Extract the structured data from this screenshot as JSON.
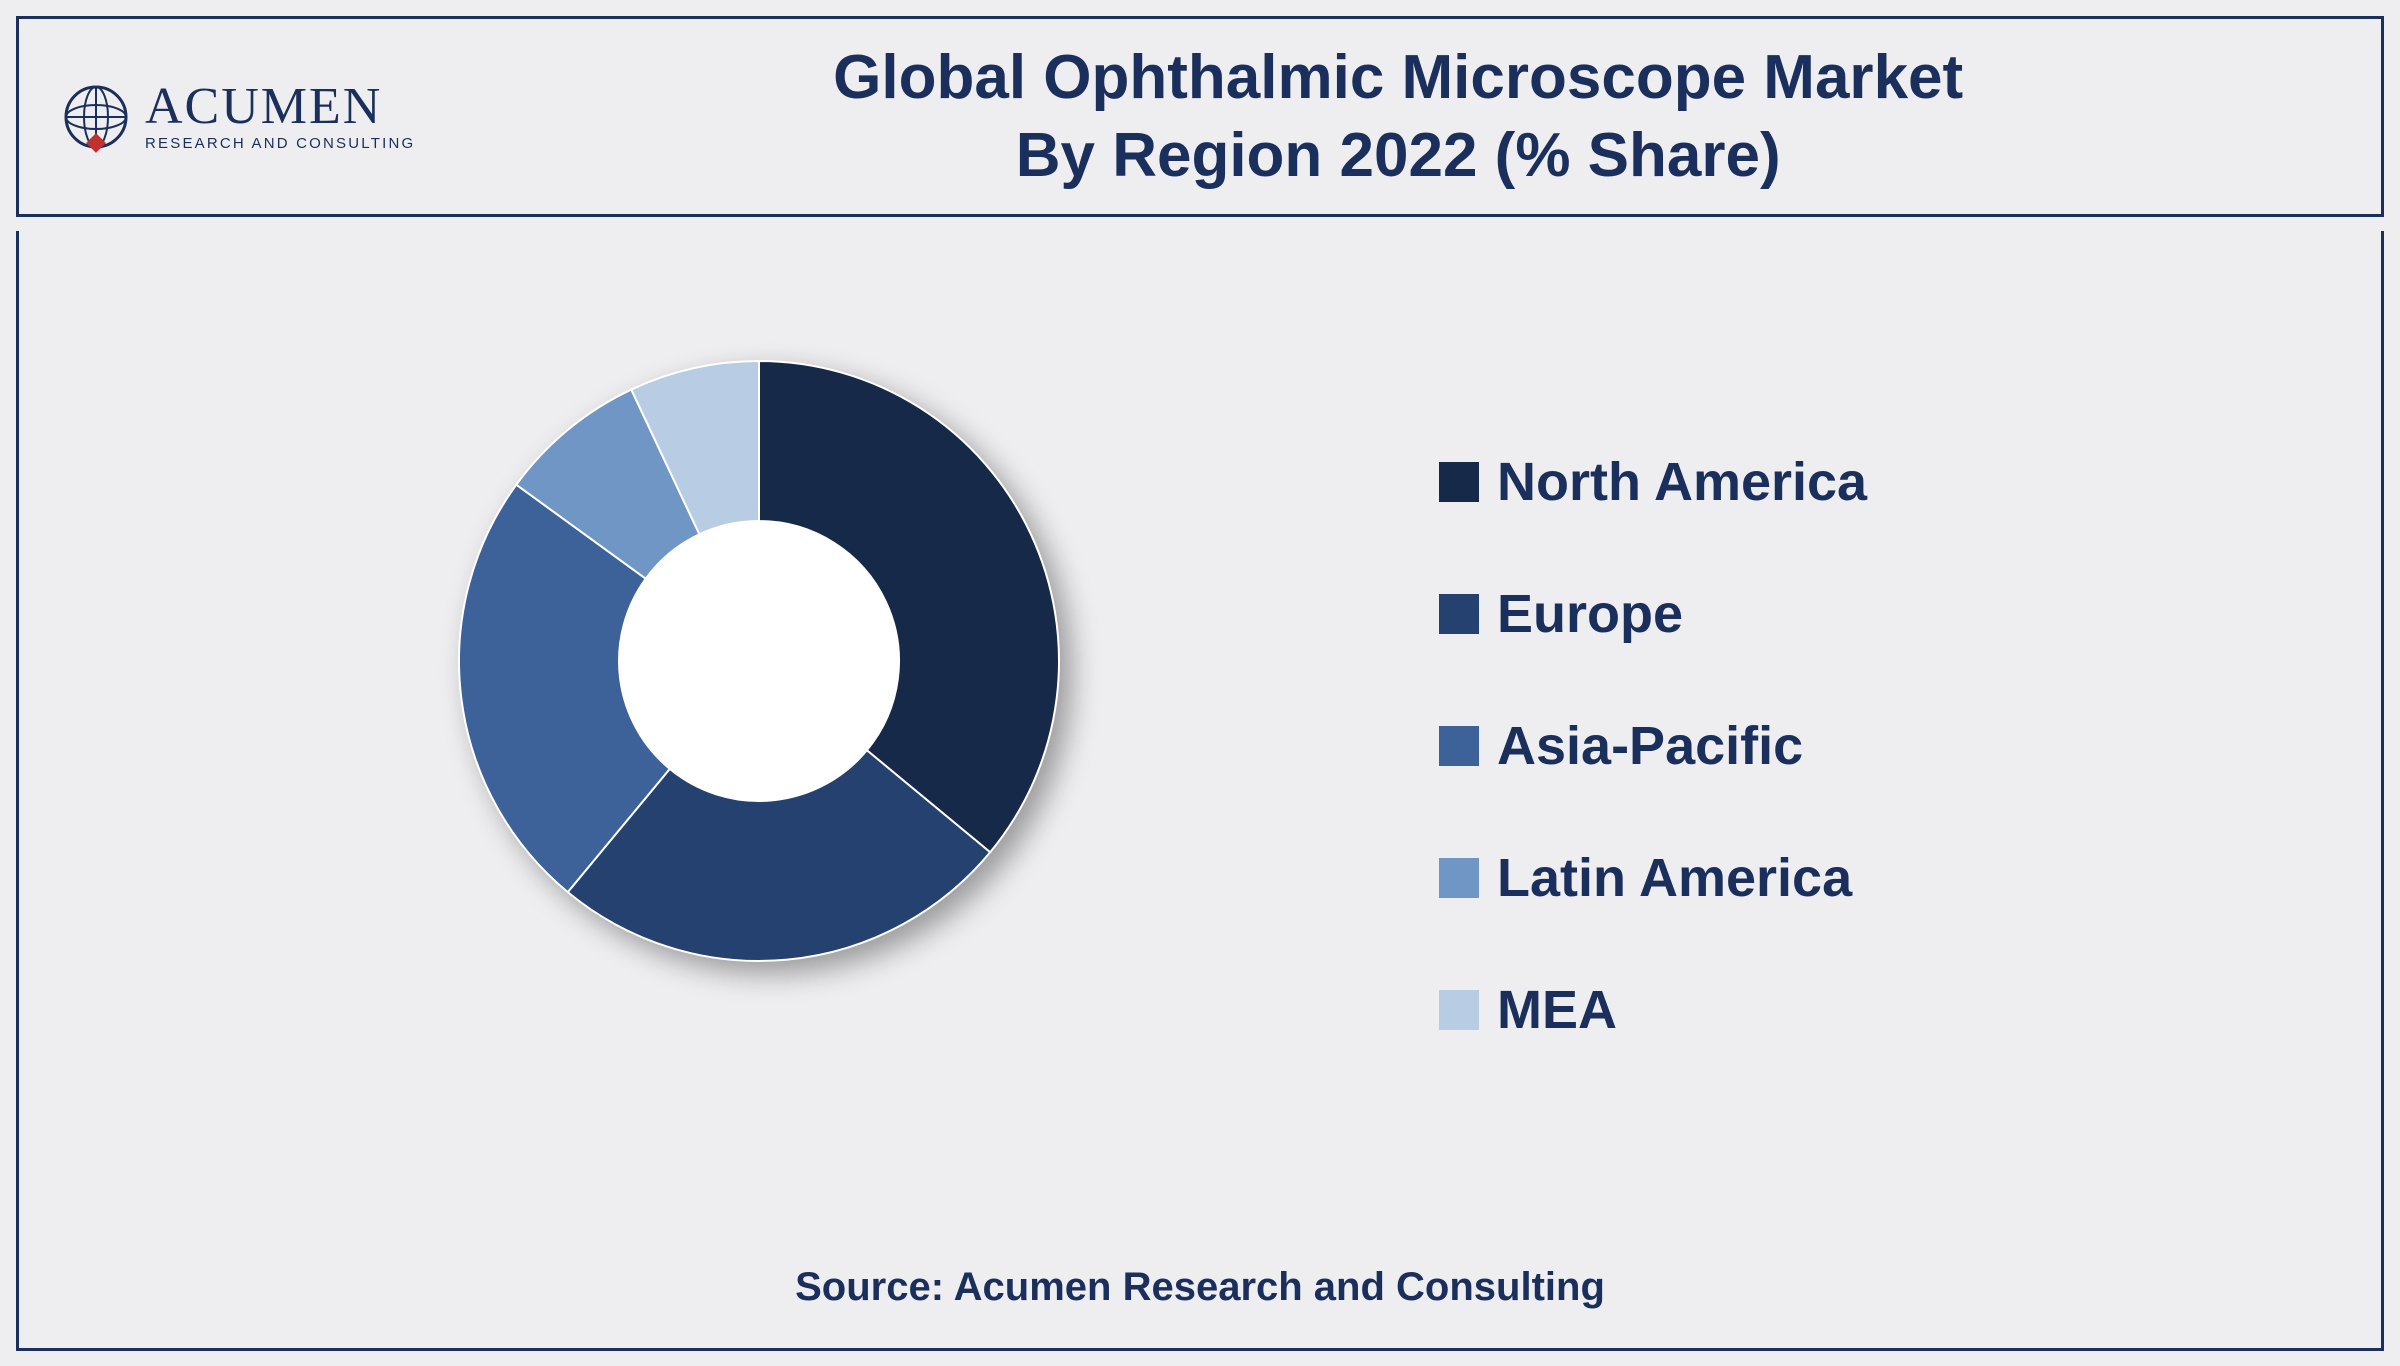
{
  "logo": {
    "name": "ACUMEN",
    "tagline": "RESEARCH AND CONSULTING",
    "globe_stroke": "#1a2f5b",
    "diamond_fill": "#c23030"
  },
  "title": {
    "line1": "Global Ophthalmic Microscope Market",
    "line2": "By Region 2022 (% Share)",
    "color": "#1a2f5b",
    "fontsize": 62
  },
  "chart": {
    "type": "donut",
    "outer_radius": 300,
    "inner_radius": 140,
    "center_fill": "#ffffff",
    "background_color": "#eeeef0",
    "segments": [
      {
        "label": "North America",
        "value": 36,
        "color": "#172948"
      },
      {
        "label": "Europe",
        "value": 25,
        "color": "#24416f"
      },
      {
        "label": "Asia-Pacific",
        "value": 24,
        "color": "#3c6299"
      },
      {
        "label": "Latin America",
        "value": 8,
        "color": "#6f96c4"
      },
      {
        "label": "MEA",
        "value": 7,
        "color": "#b8cde4"
      }
    ]
  },
  "legend": {
    "swatch_size": 40,
    "font_size": 54,
    "font_weight": "bold",
    "text_color": "#1a2f5b"
  },
  "source": {
    "text": "Source: Acumen Research and Consulting",
    "color": "#1a2f5b",
    "fontsize": 40
  },
  "border_color": "#1a2f5b"
}
